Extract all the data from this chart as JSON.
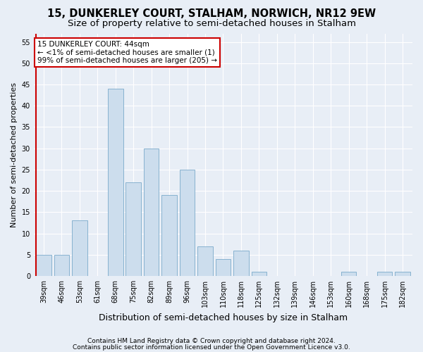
{
  "title": "15, DUNKERLEY COURT, STALHAM, NORWICH, NR12 9EW",
  "subtitle": "Size of property relative to semi-detached houses in Stalham",
  "xlabel": "Distribution of semi-detached houses by size in Stalham",
  "ylabel": "Number of semi-detached properties",
  "categories": [
    "39sqm",
    "46sqm",
    "53sqm",
    "61sqm",
    "68sqm",
    "75sqm",
    "82sqm",
    "89sqm",
    "96sqm",
    "103sqm",
    "110sqm",
    "118sqm",
    "125sqm",
    "132sqm",
    "139sqm",
    "146sqm",
    "153sqm",
    "160sqm",
    "168sqm",
    "175sqm",
    "182sqm"
  ],
  "values": [
    5,
    5,
    13,
    0,
    44,
    22,
    30,
    19,
    25,
    7,
    4,
    6,
    1,
    0,
    0,
    0,
    0,
    1,
    0,
    1,
    1
  ],
  "bar_color": "#ccdded",
  "bar_edge_color": "#7aaaca",
  "highlight_color": "#cc0000",
  "annotation_line1": "15 DUNKERLEY COURT: 44sqm",
  "annotation_line2": "← <1% of semi-detached houses are smaller (1)",
  "annotation_line3": "99% of semi-detached houses are larger (205) →",
  "annotation_box_color": "#ffffff",
  "annotation_box_edge": "#cc0000",
  "ylim": [
    0,
    57
  ],
  "yticks": [
    0,
    5,
    10,
    15,
    20,
    25,
    30,
    35,
    40,
    45,
    50,
    55
  ],
  "footer1": "Contains HM Land Registry data © Crown copyright and database right 2024.",
  "footer2": "Contains public sector information licensed under the Open Government Licence v3.0.",
  "bg_color": "#e8eef6",
  "plot_bg_color": "#e8eef6",
  "grid_color": "#ffffff",
  "title_fontsize": 10.5,
  "subtitle_fontsize": 9.5,
  "xlabel_fontsize": 9,
  "ylabel_fontsize": 8,
  "tick_fontsize": 7,
  "annotation_fontsize": 7.5,
  "footer_fontsize": 6.5
}
